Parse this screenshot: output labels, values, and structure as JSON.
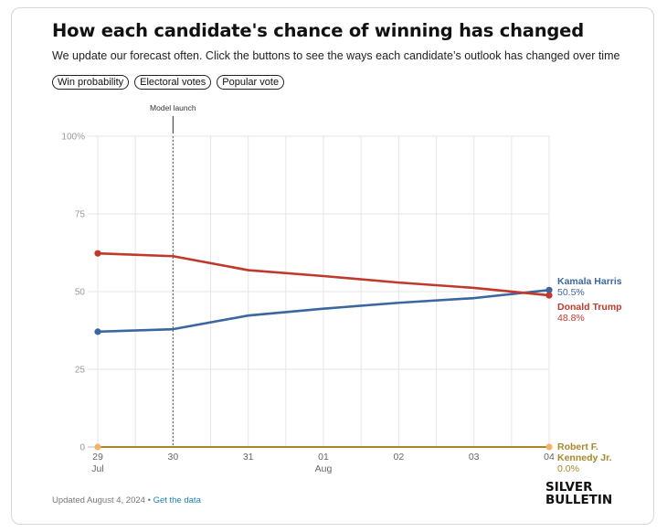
{
  "header": {
    "title": "How each candidate's chance of winning has changed",
    "subtitle": "We update our forecast often. Click the buttons to see the ways each candidate’s outlook has changed over time"
  },
  "buttons": [
    "Win probability",
    "Electoral votes",
    "Popular vote"
  ],
  "footer": {
    "updated": "Updated August 4, 2024",
    "separator": "•",
    "link": "Get the data"
  },
  "logo": {
    "line1": "SILVER",
    "line2": "BULLETIN"
  },
  "colors": {
    "harris": "#3b66a0",
    "trump": "#c0392b",
    "kennedy": "#a8862b",
    "kennedy_marker": "#f2b36b"
  },
  "chart_data": {
    "type": "line",
    "x": [
      "29 Jul",
      "30",
      "31",
      "01 Aug",
      "02",
      "03",
      "04"
    ],
    "x_tick_labels": [
      {
        "day": "29",
        "month": "Jul"
      },
      {
        "day": "30",
        "month": ""
      },
      {
        "day": "31",
        "month": ""
      },
      {
        "day": "01",
        "month": "Aug"
      },
      {
        "day": "02",
        "month": ""
      },
      {
        "day": "03",
        "month": ""
      },
      {
        "day": "04",
        "month": ""
      }
    ],
    "ylim": [
      0,
      100
    ],
    "y_ticks": [
      {
        "value": 0,
        "label": "0"
      },
      {
        "value": 25,
        "label": "25"
      },
      {
        "value": 50,
        "label": "50"
      },
      {
        "value": 75,
        "label": "75"
      },
      {
        "value": 100,
        "label": "100%"
      }
    ],
    "grid": true,
    "annotation": {
      "label": "Model launch",
      "x_index": 1
    },
    "series": [
      {
        "key": "harris",
        "name": "Kamala Harris",
        "label_lines": [
          "Kamala Harris"
        ],
        "final_label": "50.5%",
        "x": [
          0,
          1,
          2,
          3,
          4,
          5,
          6
        ],
        "values": [
          37.1,
          37.9,
          42.3,
          44.5,
          46.4,
          47.9,
          50.5
        ]
      },
      {
        "key": "trump",
        "name": "Donald Trump",
        "label_lines": [
          "Donald Trump"
        ],
        "final_label": "48.8%",
        "x": [
          0,
          1,
          2,
          3,
          4,
          5,
          6
        ],
        "values": [
          62.3,
          61.4,
          56.9,
          55.0,
          52.9,
          51.2,
          48.8
        ]
      },
      {
        "key": "kennedy",
        "name": "Robert F. Kennedy Jr.",
        "label_lines": [
          "Robert F.",
          "Kennedy Jr."
        ],
        "final_label": "0.0%",
        "x": [
          0,
          1,
          2,
          3,
          4,
          5,
          6
        ],
        "values": [
          0.0,
          0.0,
          0.0,
          0.0,
          0.0,
          0.0,
          0.0
        ]
      }
    ]
  }
}
